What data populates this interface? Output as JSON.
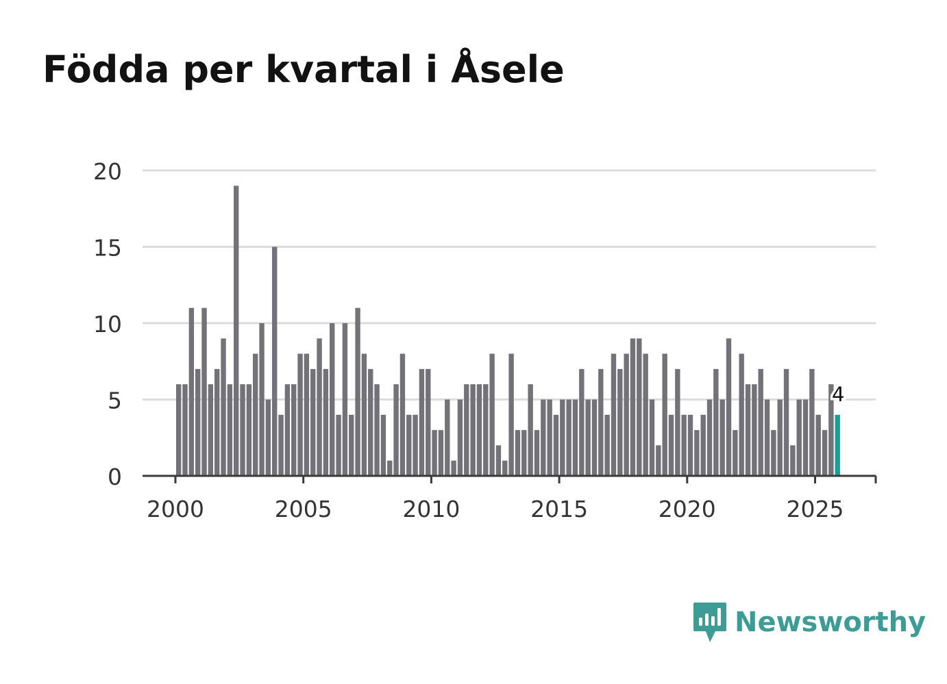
{
  "chart_data": {
    "type": "bar",
    "title": "Födda per kvartal i Åsele",
    "xlabel": "",
    "ylabel": "",
    "ylim": [
      0,
      20
    ],
    "yticks": [
      0,
      5,
      10,
      15,
      20
    ],
    "xticks": [
      "2000",
      "2005",
      "2010",
      "2015",
      "2020",
      "2025"
    ],
    "start_year": 2000,
    "series": [
      {
        "name": "Födda per kvartal",
        "values": [
          6,
          6,
          11,
          7,
          11,
          6,
          7,
          9,
          6,
          19,
          6,
          6,
          8,
          10,
          5,
          15,
          4,
          6,
          6,
          8,
          8,
          7,
          9,
          7,
          10,
          4,
          10,
          4,
          11,
          8,
          7,
          6,
          4,
          1,
          6,
          8,
          4,
          4,
          7,
          7,
          3,
          3,
          5,
          1,
          5,
          6,
          6,
          6,
          6,
          8,
          2,
          1,
          8,
          3,
          3,
          6,
          3,
          5,
          5,
          4,
          5,
          5,
          5,
          7,
          5,
          5,
          7,
          4,
          8,
          7,
          8,
          9,
          9,
          8,
          5,
          2,
          8,
          4,
          7,
          4,
          4,
          3,
          4,
          5,
          7,
          5,
          9,
          3,
          8,
          6,
          6,
          7,
          5,
          3,
          5,
          7,
          2,
          5,
          5,
          7,
          4,
          3,
          6,
          4
        ]
      }
    ],
    "annotation": {
      "text": "4",
      "value": 4
    },
    "colors": {
      "bar": "#737278",
      "highlight": "#1a9e96",
      "grid": "#dcdcdc",
      "axis": "#3a3a3a",
      "tick_text": "#333333"
    }
  },
  "brand": {
    "name": "Newsworthy",
    "color": "#3d9c95",
    "icon": "chart-bubble-icon"
  }
}
